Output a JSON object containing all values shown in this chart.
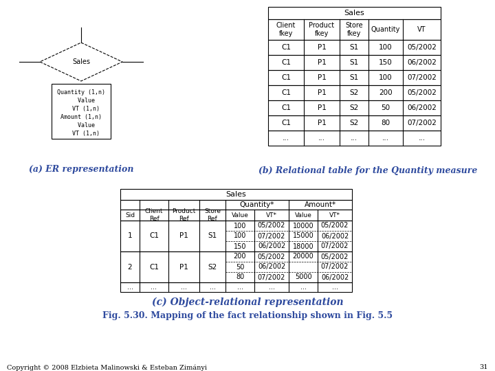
{
  "title_a": "(a) ER representation",
  "title_b": "(b) Relational table for the Quantity measure",
  "title_c": "(c) Object-relational representation",
  "fig_caption": "Fig. 5.30. Mapping of the fact relationship shown in Fig. 5.5",
  "copyright": "Copyright © 2008 Elzbieta Malinowski & Esteban Zimányi",
  "page_num": "31",
  "label_color": "#2e4a9e",
  "table_b_header1": [
    "Client\nfkey",
    "Product\nfkey",
    "Store\nfkey",
    "Quantity",
    "VT"
  ],
  "table_b_title": "Sales",
  "table_b_data": [
    [
      "C1",
      "P1",
      "S1",
      "100",
      "05/2002"
    ],
    [
      "C1",
      "P1",
      "S1",
      "150",
      "06/2002"
    ],
    [
      "C1",
      "P1",
      "S1",
      "100",
      "07/2002"
    ],
    [
      "C1",
      "P1",
      "S2",
      "200",
      "05/2002"
    ],
    [
      "C1",
      "P1",
      "S2",
      "50",
      "06/2002"
    ],
    [
      "C1",
      "P1",
      "S2",
      "80",
      "07/2002"
    ],
    [
      "...",
      "...",
      "...",
      "...",
      "..."
    ]
  ],
  "table_c_title": "Sales",
  "table_c_header_row1": [
    "",
    "Client\nRef",
    "Product\nRef",
    "Store\nRef",
    "Quantity*",
    "",
    "Amount*",
    ""
  ],
  "table_c_header_row2": [
    "Sid",
    "Client\nRef",
    "Product\nRef",
    "Store\nRef",
    "Value",
    "VT*",
    "Value",
    "VT*"
  ],
  "table_c_data": [
    [
      "1",
      "C1",
      "P1",
      "S1",
      "100",
      "05/2002\n07/2002",
      "10000\n15000\n18000",
      "05/2002\n06/2002\n07/2002"
    ],
    [
      "2",
      "C1",
      "P1",
      "S2",
      "200\n50\n80",
      "05/2002\n06/2002\n07/2002",
      "20000\n5000",
      "05/2002\n07/2002\n06/2002"
    ],
    [
      "...",
      "...",
      "...",
      "...",
      "...",
      "...",
      "...",
      "..."
    ]
  ],
  "er_diamond_text": "Sales",
  "er_box_lines": [
    "Quantity (1,n)",
    "   Value",
    "   VT (1,n)",
    "Amount (1,n)",
    "   Value",
    "   VT (1,n)"
  ]
}
